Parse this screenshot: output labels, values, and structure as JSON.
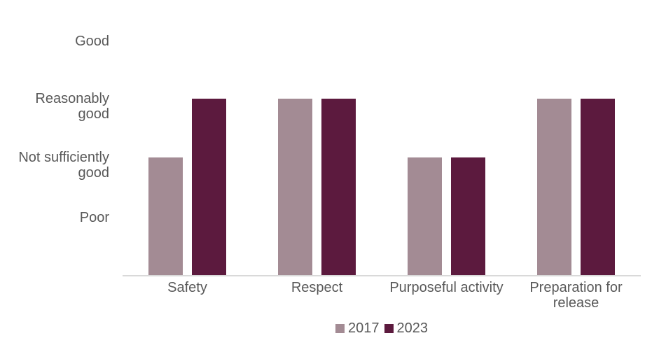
{
  "chart_data": {
    "type": "bar",
    "title": "",
    "xlabel": "",
    "ylabel": "",
    "categories": [
      "Safety",
      "Respect",
      "Purposeful activity",
      "Preparation for release"
    ],
    "series": [
      {
        "name": "2017",
        "color": "#A38B94",
        "values": [
          2,
          3,
          2,
          3
        ]
      },
      {
        "name": "2023",
        "color": "#5C1A3E",
        "values": [
          3,
          3,
          2,
          3
        ]
      }
    ],
    "y_ticks": [
      {
        "value": 4,
        "label": "Good"
      },
      {
        "value": 3,
        "label": "Reasonably\ngood"
      },
      {
        "value": 2,
        "label": "Not sufficiently\ngood"
      },
      {
        "value": 1,
        "label": "Poor"
      }
    ],
    "ylim": [
      0,
      4
    ],
    "grid": false,
    "legend_position": "bottom",
    "colors": {
      "axis_line": "#D9D9D9",
      "label_text": "#595959",
      "background": "#FFFFFF"
    }
  }
}
